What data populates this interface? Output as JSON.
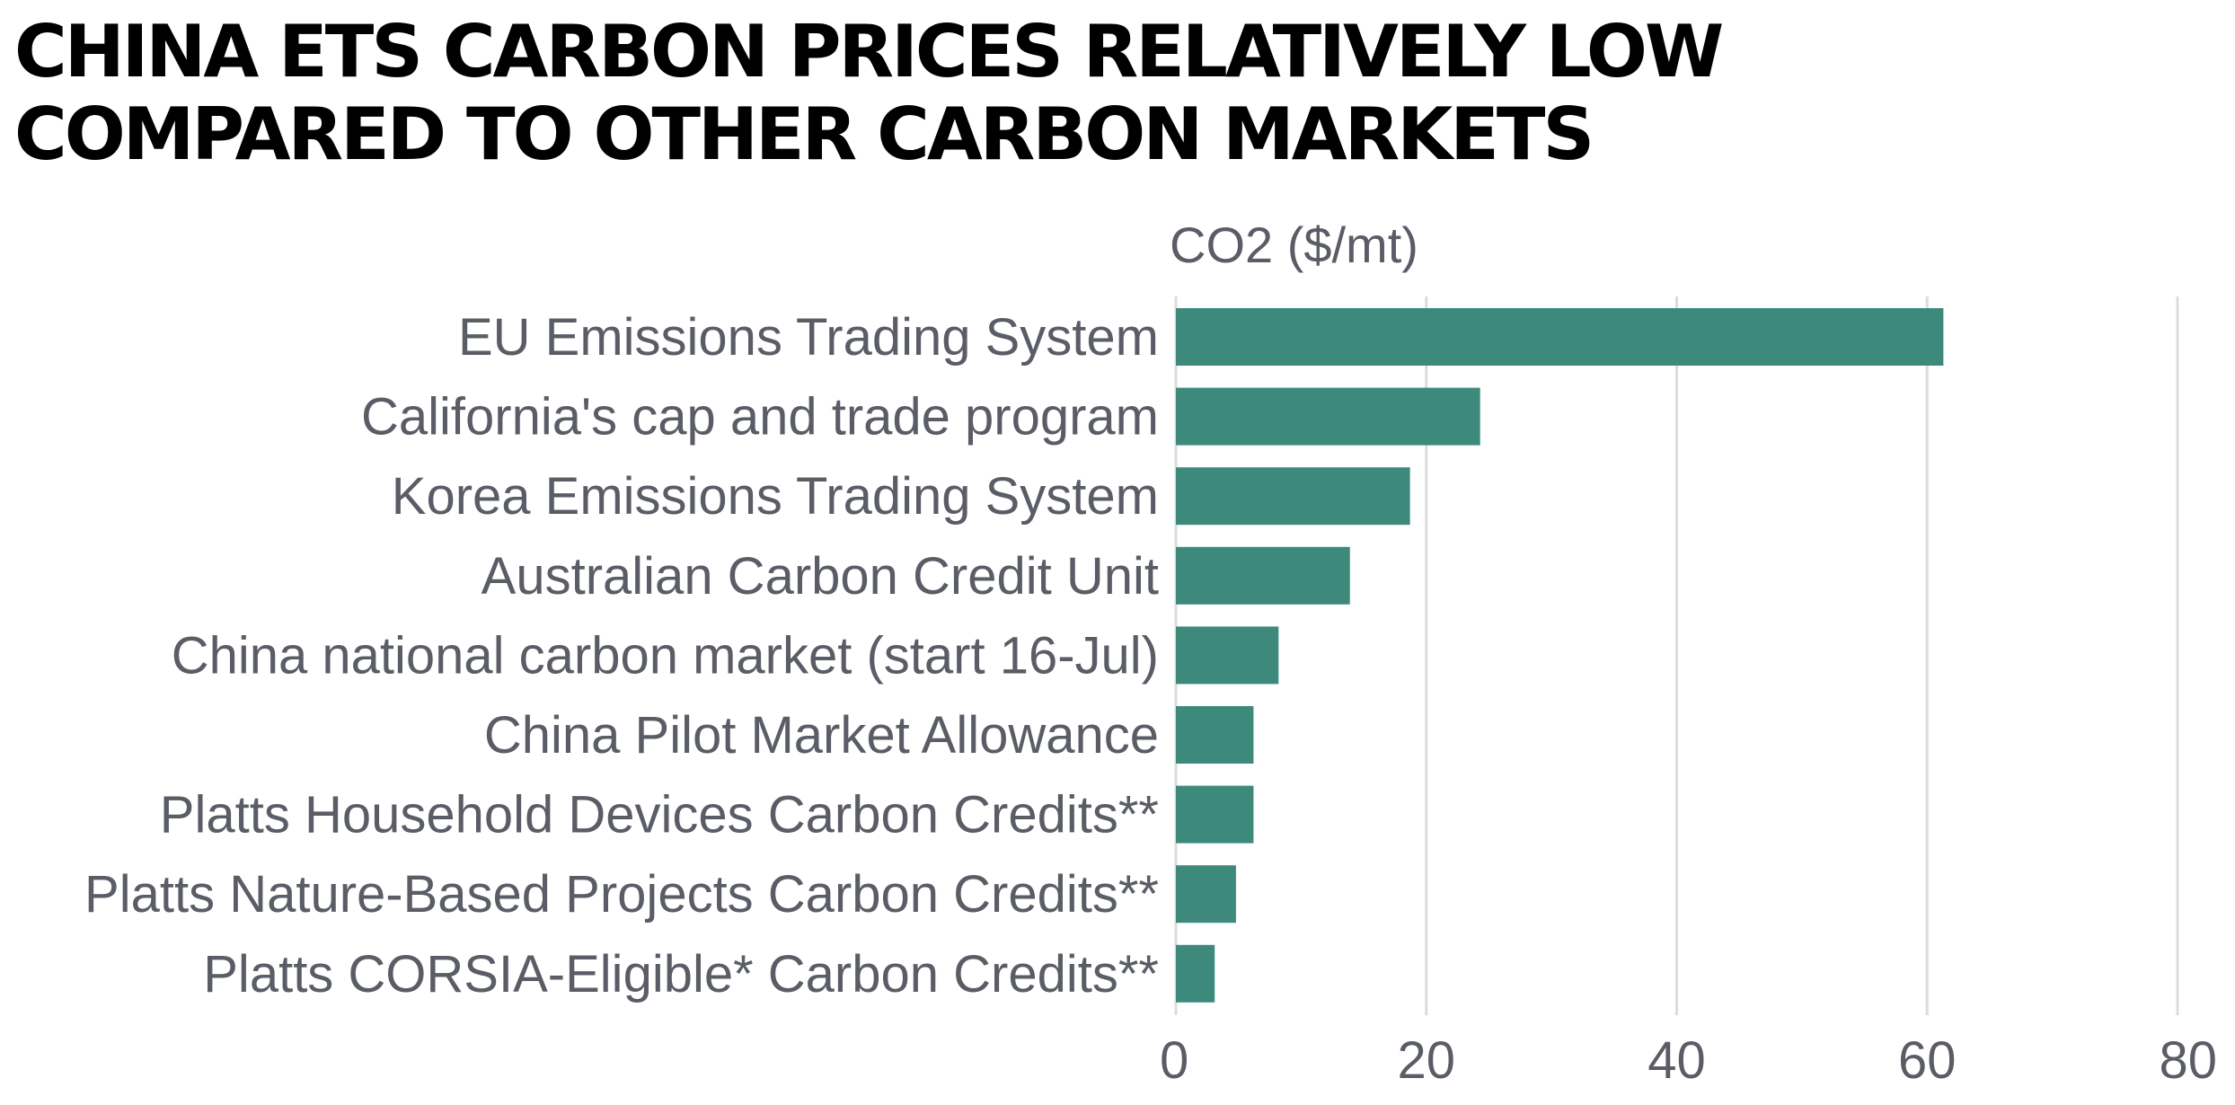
{
  "title": "CHINA ETS CARBON PRICES RELATIVELY LOW COMPARED TO OTHER CARBON MARKETS",
  "colors": {
    "bar": "#3d8a7c",
    "grid": "#dcdcdc",
    "text": "#5a5d66"
  },
  "chart_data": {
    "type": "bar",
    "orientation": "horizontal",
    "title": "CHINA ETS CARBON PRICES RELATIVELY LOW COMPARED TO OTHER CARBON MARKETS",
    "xlabel": "CO2 ($/mt)",
    "ylabel": "",
    "categories": [
      "EU Emissions Trading System",
      "California's cap and trade program",
      "Korea Emissions Trading System",
      "Australian Carbon Credit Unit",
      "China national carbon market (start 16-Jul)",
      "China Pilot Market Allowance",
      "Platts Household Devices Carbon Credits**",
      "Platts Nature-Based Projects Carbon Credits**",
      "Platts CORSIA-Eligible* Carbon Credits**"
    ],
    "values": [
      61.3,
      24.3,
      18.7,
      13.9,
      8.2,
      6.2,
      6.2,
      4.8,
      3.1
    ],
    "xlim": [
      0,
      80
    ],
    "xticks": [
      0,
      20,
      40,
      60,
      80
    ],
    "xtick_labels": [
      "0",
      "20",
      "40",
      "60",
      "80"
    ],
    "grid": true,
    "legend": "none"
  }
}
